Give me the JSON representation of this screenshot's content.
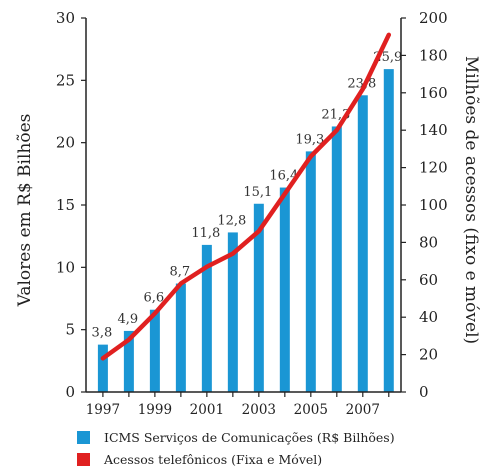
{
  "chart_data": {
    "type": "bar",
    "x": [
      1997,
      1998,
      1999,
      2000,
      2001,
      2002,
      2003,
      2004,
      2005,
      2006,
      2007,
      2008
    ],
    "x_tick_labels": [
      "1997",
      "1999",
      "2001",
      "2003",
      "2005",
      "2007"
    ],
    "series": [
      {
        "name": "ICMS Serviços de Comunicações (R$ Bilhões)",
        "type": "bar",
        "axis": "left",
        "color": "#1a96d4",
        "values": [
          3.8,
          4.9,
          6.6,
          8.7,
          11.8,
          12.8,
          15.1,
          16.4,
          19.3,
          21.3,
          23.8,
          25.9
        ],
        "labels": [
          "3,8",
          "4,9",
          "6,6",
          "8,7",
          "11,8",
          "12,8",
          "15,1",
          "16,4",
          "19,3",
          "21,3",
          "23,8",
          "25,9"
        ]
      },
      {
        "name": "Acessos telefônicos (Fixa e Móvel)",
        "type": "line",
        "axis": "right",
        "color": "#e02020",
        "values": [
          18,
          28,
          42,
          58,
          67,
          74,
          86,
          106,
          126,
          140,
          162,
          191
        ]
      }
    ],
    "ylabel": "Valores em R$ Bilhões",
    "ylabel_right": "Milhões de acessos  (fixo e móvel)",
    "ylim": [
      0,
      30
    ],
    "ylim_right": [
      0,
      200
    ],
    "y_ticks": [
      0,
      5,
      10,
      15,
      20,
      25,
      30
    ],
    "y_ticks_right": [
      0,
      20,
      40,
      60,
      80,
      100,
      120,
      140,
      160,
      180,
      200
    ],
    "grid": false,
    "legend_position": "bottom"
  }
}
